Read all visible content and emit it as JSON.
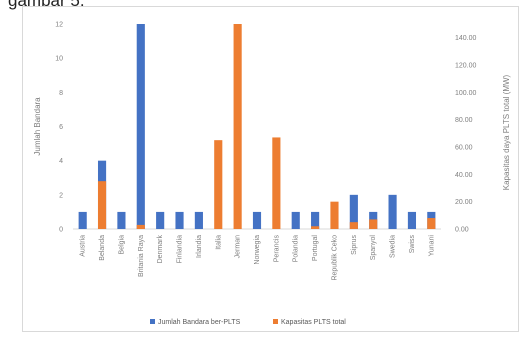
{
  "caption": "gambar 5.",
  "chart_data": {
    "type": "bar",
    "categories": [
      "Austria",
      "Belanda",
      "Belgia",
      "Britania Raya",
      "Denmark",
      "Finlandia",
      "Irlandia",
      "Italia",
      "Jerman",
      "Norwegia",
      "Perancis",
      "Polandia",
      "Portugal",
      "Republik Ceko",
      "Siprus",
      "Spanyol",
      "Swedia",
      "Swiss",
      "Yunani"
    ],
    "series": [
      {
        "name": "Jumlah Bandara ber-PLTS",
        "axis": "left",
        "color": "#4472c4",
        "values": [
          1,
          4,
          1,
          12,
          1,
          1,
          1,
          0,
          0,
          1,
          0,
          1,
          1,
          0,
          2,
          1,
          2,
          1,
          1
        ]
      },
      {
        "name": "Kapasitas PLTS total",
        "axis": "right",
        "color": "#ed7d31",
        "values": [
          0,
          35,
          0,
          3,
          0,
          0,
          0,
          65,
          150,
          0,
          67,
          0,
          2,
          20,
          5,
          7,
          0,
          0,
          8
        ]
      }
    ],
    "ylabel": "Jumlah Bandara",
    "ylabel_right": "Kapasitas daya PLTS total (MW)",
    "ylim": [
      0,
      12
    ],
    "ylim_right": [
      0,
      150
    ],
    "yticks": [
      "0",
      "2",
      "4",
      "6",
      "8",
      "10",
      "12"
    ],
    "yticks_right": [
      "0.00",
      "20.00",
      "40.00",
      "60.00",
      "80.00",
      "100.00",
      "120.00",
      "140.00"
    ],
    "grid": false,
    "legend_position": "bottom"
  }
}
